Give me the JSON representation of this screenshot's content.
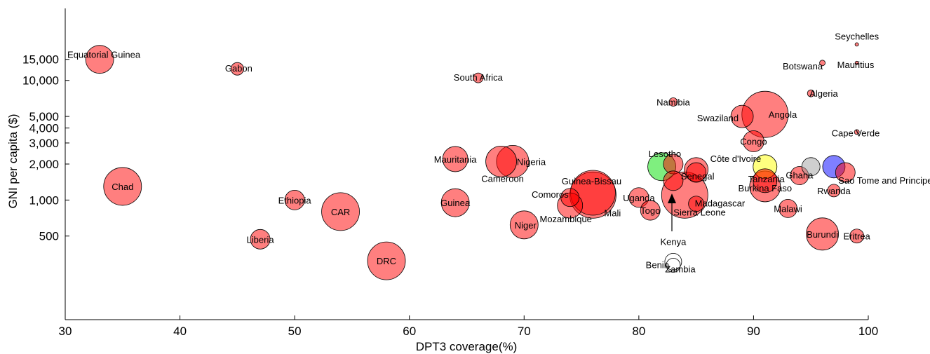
{
  "chart_data": {
    "type": "scatter",
    "xlabel": "DPT3 coverage(%)",
    "ylabel": "GNI per capita ($)",
    "x_scale": "linear",
    "y_scale": "log",
    "xlim": [
      30,
      100
    ],
    "ylim": [
      100,
      40000
    ],
    "xticks": [
      30,
      40,
      50,
      60,
      70,
      80,
      90,
      100
    ],
    "xtick_labels": [
      "30",
      "40",
      "50",
      "60",
      "70",
      "80",
      "90",
      "100"
    ],
    "yticks": [
      500,
      1000,
      2000,
      3000,
      4000,
      5000,
      10000,
      15000
    ],
    "ytick_labels": [
      "500",
      "1,000",
      "2,000",
      "3,000",
      "4,000",
      "5,000",
      "10,000",
      "15,000"
    ],
    "grid": false,
    "legend": "none",
    "points": [
      {
        "label": "Equatorial Guinea",
        "x": 33,
        "y": 15000,
        "r": 20,
        "fill": "#ff0000"
      },
      {
        "label": "Gabon",
        "x": 45,
        "y": 12500,
        "r": 9,
        "fill": "#ff0000"
      },
      {
        "label": "South Africa",
        "x": 66,
        "y": 10500,
        "r": 7,
        "fill": "#ff0000"
      },
      {
        "label": "Seychelles",
        "x": 99,
        "y": 20000,
        "r": 2.5,
        "fill": "#ff0000"
      },
      {
        "label": "Mauritius",
        "x": 99,
        "y": 14000,
        "r": 2.5,
        "fill": "#ff0000"
      },
      {
        "label": "Botswana",
        "x": 96,
        "y": 14000,
        "r": 4,
        "fill": "#ff0000"
      },
      {
        "label": "Algeria",
        "x": 95,
        "y": 7800,
        "r": 5,
        "fill": "#ff0000"
      },
      {
        "label": "Namibia",
        "x": 83,
        "y": 6600,
        "r": 6,
        "fill": "#ff0000"
      },
      {
        "label": "Angola",
        "x": 91,
        "y": 5200,
        "r": 33,
        "fill": "#ff0000"
      },
      {
        "label": "Swaziland",
        "x": 89,
        "y": 5000,
        "r": 16,
        "fill": "#ff0000"
      },
      {
        "label": "Cape Verde",
        "x": 99,
        "y": 3700,
        "r": 3.5,
        "fill": "#ff0000"
      },
      {
        "label": "Congo",
        "x": 90,
        "y": 3100,
        "r": 15,
        "fill": "#ff0000"
      },
      {
        "label": "Chad",
        "x": 35,
        "y": 1300,
        "r": 27,
        "fill": "#ff0000"
      },
      {
        "label": "Mauritania",
        "x": 64,
        "y": 2200,
        "r": 18,
        "fill": "#ff0000"
      },
      {
        "label": "Nigeria",
        "x": 69,
        "y": 2100,
        "r": 23,
        "fill": "#ff0000"
      },
      {
        "label": "Cameroon",
        "x": 68,
        "y": 2100,
        "r": 22,
        "fill": "#ff0000"
      },
      {
        "label": "Lesotho",
        "x": 83,
        "y": 2000,
        "r": 14,
        "fill": "#ff0000"
      },
      {
        "label": "",
        "x": 82,
        "y": 1900,
        "r": 20,
        "fill": "#00e000"
      },
      {
        "label": "Côte d'Ivoire",
        "x": 85,
        "y": 1800,
        "r": 17,
        "fill": "#ff0000"
      },
      {
        "label": "Senegal",
        "x": 85,
        "y": 1700,
        "r": 14,
        "fill": "#ff0000"
      },
      {
        "label": "Guinea-Bissau",
        "x": 76,
        "y": 1150,
        "r": 32,
        "fill": "#ff0000"
      },
      {
        "label": "Comoros",
        "x": 74,
        "y": 1050,
        "r": 13,
        "fill": "#ff0000"
      },
      {
        "label": "Mali",
        "x": 76,
        "y": 1100,
        "r": 33,
        "fill": "#ff0000"
      },
      {
        "label": "Mozambique",
        "x": 74,
        "y": 900,
        "r": 18,
        "fill": "#ff0000"
      },
      {
        "label": "Uganda",
        "x": 80,
        "y": 1050,
        "r": 14,
        "fill": "#ff0000"
      },
      {
        "label": "Togo",
        "x": 81,
        "y": 820,
        "r": 14,
        "fill": "#ff0000"
      },
      {
        "label": "",
        "x": 83,
        "y": 1450,
        "r": 14,
        "fill": "#ff0000"
      },
      {
        "label": "Sierra Leone",
        "x": 84,
        "y": 1100,
        "r": 33,
        "fill": "#ff0000"
      },
      {
        "label": "Madagascar",
        "x": 85,
        "y": 930,
        "r": 11,
        "fill": "#ff0000"
      },
      {
        "label": "Kenya",
        "x": 83,
        "y": 1000,
        "r": 0,
        "fill": "none"
      },
      {
        "label": "Benin",
        "x": 83,
        "y": 305,
        "r": 12,
        "fill": "none"
      },
      {
        "label": "Zambia",
        "x": 83,
        "y": 285,
        "r": 10,
        "fill": "none"
      },
      {
        "label": "",
        "x": 91,
        "y": 1900,
        "r": 17,
        "fill": "#ffff00"
      },
      {
        "label": "Tanzania",
        "x": 91,
        "y": 1450,
        "r": 17,
        "fill": "#ff0000"
      },
      {
        "label": "Burkina Faso",
        "x": 91,
        "y": 1300,
        "r": 22,
        "fill": "#ff0000"
      },
      {
        "label": "Ghana",
        "x": 94,
        "y": 1600,
        "r": 13,
        "fill": "#ff0000"
      },
      {
        "label": "",
        "x": 95,
        "y": 1900,
        "r": 13,
        "fill": "#a0a0a0"
      },
      {
        "label": "",
        "x": 97,
        "y": 1900,
        "r": 16,
        "fill": "#0000ff"
      },
      {
        "label": "Sao Tome and Principe",
        "x": 98,
        "y": 1700,
        "r": 14,
        "fill": "#ff0000"
      },
      {
        "label": "Rwanda",
        "x": 97,
        "y": 1200,
        "r": 9,
        "fill": "#ff0000"
      },
      {
        "label": "Malawi",
        "x": 93,
        "y": 850,
        "r": 13,
        "fill": "#ff0000"
      },
      {
        "label": "Burundi",
        "x": 96,
        "y": 520,
        "r": 23,
        "fill": "#ff0000"
      },
      {
        "label": "Eritrea",
        "x": 99,
        "y": 500,
        "r": 10,
        "fill": "#ff0000"
      },
      {
        "label": "Ethiopia",
        "x": 50,
        "y": 1000,
        "r": 14,
        "fill": "#ff0000"
      },
      {
        "label": "CAR",
        "x": 54,
        "y": 800,
        "r": 27,
        "fill": "#ff0000"
      },
      {
        "label": "Liberia",
        "x": 47,
        "y": 470,
        "r": 14,
        "fill": "#ff0000"
      },
      {
        "label": "Guinea",
        "x": 64,
        "y": 950,
        "r": 20,
        "fill": "#ff0000"
      },
      {
        "label": "Niger",
        "x": 70,
        "y": 620,
        "r": 20,
        "fill": "#ff0000"
      },
      {
        "label": "DRC",
        "x": 58,
        "y": 310,
        "r": 27,
        "fill": "#ff0000"
      }
    ]
  }
}
